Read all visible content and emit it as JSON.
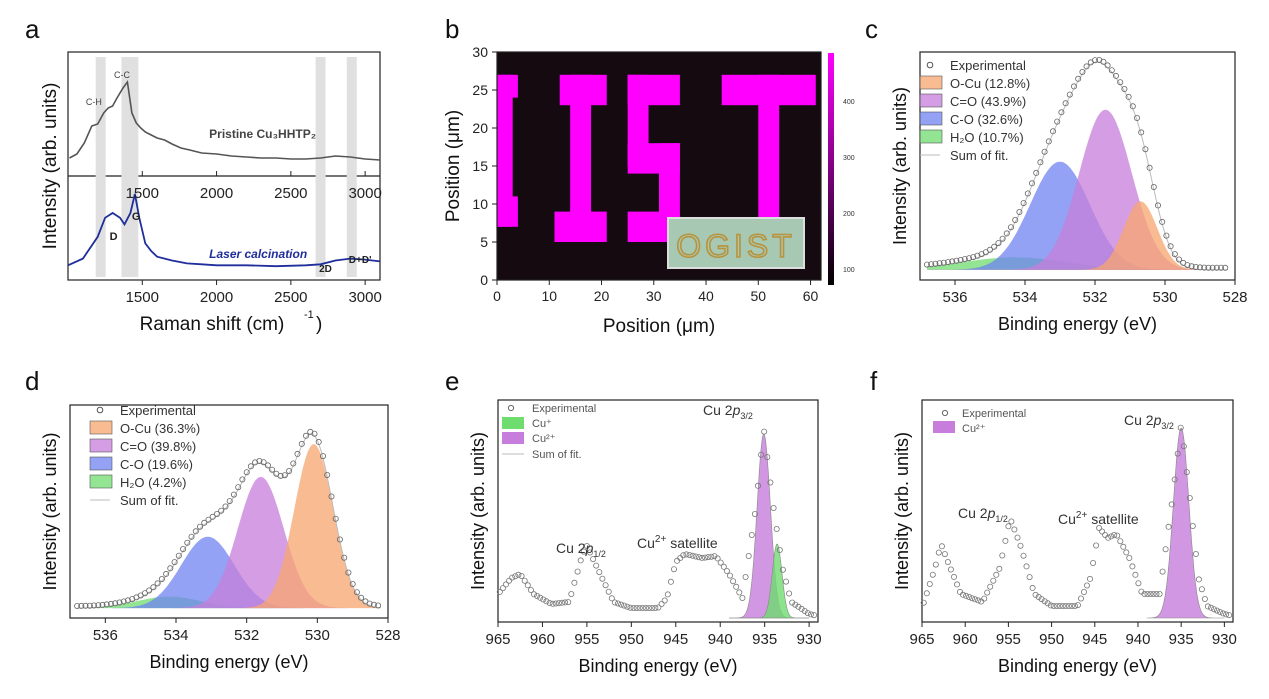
{
  "panels": {
    "a": {
      "letter": "a"
    },
    "b": {
      "letter": "b"
    },
    "c": {
      "letter": "c"
    },
    "d": {
      "letter": "d"
    },
    "e": {
      "letter": "e"
    },
    "f": {
      "letter": "f"
    }
  },
  "chart_data": [
    {
      "id": "a",
      "type": "line",
      "xlabel": "Raman shift (cm-1)",
      "ylabel": "Intensity (arb. units)",
      "xticks": [
        "1500",
        "2000",
        "2500",
        "3000"
      ],
      "xticks_top": [
        "1500",
        "2000",
        "2500",
        "3000"
      ],
      "xlim": [
        1000,
        3100
      ],
      "series": [
        {
          "name": "Pristine Cu3HHTP2",
          "label_text": "Pristine Cu₃HHTP₂",
          "color": "#555555",
          "x": [
            1010,
            1060,
            1110,
            1160,
            1200,
            1240,
            1270,
            1300,
            1330,
            1370,
            1400,
            1430,
            1460,
            1490,
            1520,
            1560,
            1600,
            1650,
            1700,
            1760,
            1820,
            1900,
            2000,
            2100,
            2200,
            2300,
            2400,
            2500,
            2600,
            2700,
            2800,
            2900,
            3000,
            3100
          ],
          "y": [
            0.1,
            0.14,
            0.25,
            0.42,
            0.44,
            0.55,
            0.6,
            0.62,
            0.7,
            0.8,
            0.86,
            0.55,
            0.45,
            0.4,
            0.36,
            0.33,
            0.3,
            0.28,
            0.24,
            0.2,
            0.18,
            0.15,
            0.14,
            0.12,
            0.11,
            0.1,
            0.1,
            0.09,
            0.09,
            0.1,
            0.12,
            0.11,
            0.09,
            0.08
          ]
        },
        {
          "name": "Laser calcination",
          "color": "#1f2e9a",
          "x": [
            1000,
            1100,
            1200,
            1250,
            1300,
            1350,
            1380,
            1420,
            1450,
            1480,
            1520,
            1560,
            1600,
            1700,
            1800,
            1900,
            2000,
            2200,
            2400,
            2600,
            2700,
            2800,
            2900,
            3000,
            3100
          ],
          "y": [
            0.05,
            0.12,
            0.35,
            0.55,
            0.6,
            0.55,
            0.48,
            0.6,
            0.8,
            0.55,
            0.28,
            0.2,
            0.14,
            0.1,
            0.07,
            0.06,
            0.05,
            0.05,
            0.04,
            0.05,
            0.06,
            0.1,
            0.12,
            0.11,
            0.09
          ]
        }
      ],
      "annotations": [
        "C-H",
        "C-C",
        "D",
        "G",
        "2D",
        "D+D'"
      ]
    },
    {
      "id": "b",
      "type": "heatmap",
      "xlabel": "Position (μm)",
      "ylabel": "Position (μm)",
      "xticks": [
        "0",
        "10",
        "20",
        "30",
        "40",
        "50",
        "60"
      ],
      "yticks": [
        "0",
        "5",
        "10",
        "15",
        "20",
        "25",
        "30"
      ],
      "colorbar_ticks": [
        "100",
        "200",
        "300",
        "400"
      ],
      "inset_text": "OGIST",
      "text_pattern": "GIST"
    },
    {
      "id": "c",
      "type": "area",
      "xlabel": "Binding energy (eV)",
      "ylabel": "Intensity (arb. units)",
      "xticks": [
        "536",
        "534",
        "532",
        "530",
        "528"
      ],
      "xlim": [
        537,
        528
      ],
      "legend": [
        "Experimental",
        "O-Cu (12.8%)",
        "C=O (43.9%)",
        "C-O (32.6%)",
        "H₂O (10.7%)",
        "Sum of fit."
      ],
      "peaks": [
        {
          "name": "O-Cu",
          "share": 12.8,
          "center": 530.7,
          "height": 0.33,
          "width": 0.48,
          "color": "#f7a56e"
        },
        {
          "name": "C=O",
          "share": 43.9,
          "center": 531.7,
          "height": 0.77,
          "width": 0.75,
          "color": "#c77ddb"
        },
        {
          "name": "C-O",
          "share": 32.6,
          "center": 533.0,
          "height": 0.52,
          "width": 0.85,
          "color": "#6f83f0"
        },
        {
          "name": "H2O",
          "share": 10.7,
          "center": 534.3,
          "height": 0.06,
          "width": 1.5,
          "color": "#6fdc6f"
        }
      ]
    },
    {
      "id": "d",
      "type": "area",
      "xlabel": "Binding energy (eV)",
      "ylabel": "Intensity (arb. units)",
      "xticks": [
        "536",
        "534",
        "532",
        "530",
        "528"
      ],
      "xlim": [
        537,
        528
      ],
      "legend": [
        "Experimental",
        "O-Cu (36.3%)",
        "C=O (39.8%)",
        "C-O (19.6%)",
        "H₂O (4.2%)",
        "Sum of fit."
      ],
      "peaks": [
        {
          "name": "O-Cu",
          "share": 36.3,
          "center": 530.1,
          "height": 0.85,
          "width": 0.55,
          "color": "#f7a56e"
        },
        {
          "name": "C=O",
          "share": 39.8,
          "center": 531.6,
          "height": 0.68,
          "width": 0.65,
          "color": "#c77ddb"
        },
        {
          "name": "C-O",
          "share": 19.6,
          "center": 533.1,
          "height": 0.37,
          "width": 0.75,
          "color": "#6f83f0"
        },
        {
          "name": "H2O",
          "share": 4.2,
          "center": 534.2,
          "height": 0.06,
          "width": 0.9,
          "color": "#6fdc6f"
        }
      ]
    },
    {
      "id": "e",
      "type": "area",
      "xlabel": "Binding energy (eV)",
      "ylabel": "Intensity (arb. units)",
      "xticks": [
        "965",
        "960",
        "955",
        "950",
        "945",
        "940",
        "935",
        "930"
      ],
      "xlim": [
        965,
        929
      ],
      "legend": [
        "Experimental",
        "Cu⁺",
        "Cu²⁺",
        "Sum of fit."
      ],
      "annotations": [
        "Cu 2p3/2",
        "Cu 2p1/2",
        "Cu2+ satellite"
      ],
      "peaks": [
        {
          "name": "Cu+",
          "center": 933.6,
          "height": 0.37,
          "width": 0.55,
          "color": "#6fdc6f"
        },
        {
          "name": "Cu2+",
          "center": 935.1,
          "height": 0.92,
          "width": 0.75,
          "color": "#c77ddb"
        }
      ],
      "exp": [
        [
          965,
          0.12
        ],
        [
          963.5,
          0.2
        ],
        [
          962.5,
          0.22
        ],
        [
          961,
          0.12
        ],
        [
          959,
          0.07
        ],
        [
          957,
          0.08
        ],
        [
          955.5,
          0.32
        ],
        [
          955,
          0.36
        ],
        [
          953.5,
          0.22
        ],
        [
          952,
          0.08
        ],
        [
          950,
          0.05
        ],
        [
          947,
          0.05
        ],
        [
          946,
          0.1
        ],
        [
          945,
          0.28
        ],
        [
          944,
          0.32
        ],
        [
          942,
          0.3
        ],
        [
          940.5,
          0.31
        ],
        [
          939,
          0.22
        ],
        [
          937.5,
          0.1
        ],
        [
          936,
          0.55
        ],
        [
          935.1,
          0.95
        ],
        [
          934,
          0.55
        ],
        [
          933,
          0.25
        ],
        [
          932,
          0.08
        ],
        [
          930,
          0.02
        ],
        [
          929,
          0.01
        ]
      ]
    },
    {
      "id": "f",
      "type": "area",
      "xlabel": "Binding energy (eV)",
      "ylabel": "Intensity (arb. units)",
      "xticks": [
        "965",
        "960",
        "955",
        "950",
        "945",
        "940",
        "935",
        "930"
      ],
      "xlim": [
        965,
        929
      ],
      "legend": [
        "Experimental",
        "Cu²⁺"
      ],
      "annotations": [
        "Cu 2p3/2",
        "Cu 2p1/2",
        "Cu2+ satellite"
      ],
      "peaks": [
        {
          "name": "Cu2+",
          "center": 935.0,
          "height": 0.95,
          "width": 0.9,
          "color": "#c77ddb"
        }
      ],
      "exp": [
        [
          965,
          0.05
        ],
        [
          963.5,
          0.25
        ],
        [
          962.8,
          0.37
        ],
        [
          962,
          0.28
        ],
        [
          960.5,
          0.12
        ],
        [
          958,
          0.08
        ],
        [
          956,
          0.25
        ],
        [
          954.8,
          0.5
        ],
        [
          953.5,
          0.35
        ],
        [
          952,
          0.12
        ],
        [
          950,
          0.06
        ],
        [
          947,
          0.06
        ],
        [
          945.5,
          0.2
        ],
        [
          944.5,
          0.45
        ],
        [
          943.5,
          0.4
        ],
        [
          942.5,
          0.42
        ],
        [
          941,
          0.3
        ],
        [
          939.5,
          0.12
        ],
        [
          937.5,
          0.12
        ],
        [
          936,
          0.6
        ],
        [
          935,
          0.97
        ],
        [
          934,
          0.6
        ],
        [
          933,
          0.2
        ],
        [
          932,
          0.06
        ],
        [
          930,
          0.02
        ],
        [
          929,
          0.01
        ]
      ]
    }
  ]
}
